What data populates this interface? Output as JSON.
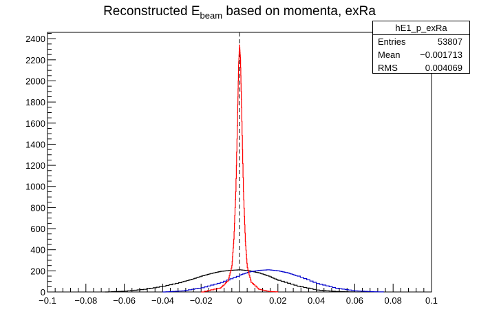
{
  "chart_data": {
    "type": "line",
    "title_main": "Reconstructed E",
    "title_sub": "beam",
    "title_rest": " based on momenta, exRa",
    "xlim": [
      -0.1,
      0.1
    ],
    "ylim": [
      0,
      2460
    ],
    "x_ticks": [
      "−0.1",
      "−0.08",
      "−0.06",
      "−0.04",
      "−0.02",
      "0",
      "0.02",
      "0.04",
      "0.06",
      "0.08",
      "0.1"
    ],
    "x_tick_values": [
      -0.1,
      -0.08,
      -0.06,
      -0.04,
      -0.02,
      0,
      0.02,
      0.04,
      0.06,
      0.08,
      0.1
    ],
    "y_ticks": [
      "0",
      "200",
      "400",
      "600",
      "800",
      "1000",
      "1200",
      "1400",
      "1600",
      "1800",
      "2000",
      "2200",
      "2400"
    ],
    "y_tick_values": [
      0,
      200,
      400,
      600,
      800,
      1000,
      1200,
      1400,
      1600,
      1800,
      2000,
      2200,
      2400
    ],
    "vertical_line_x": 0,
    "series": [
      {
        "color": "#000000",
        "x": [
          -0.07,
          -0.06,
          -0.05,
          -0.04,
          -0.03,
          -0.025,
          -0.02,
          -0.015,
          -0.01,
          -0.005,
          0,
          0.005,
          0.01,
          0.015,
          0.02,
          0.03,
          0.04,
          0.05,
          0.06
        ],
        "values": [
          0,
          8,
          25,
          55,
          95,
          120,
          150,
          175,
          195,
          205,
          210,
          200,
          180,
          150,
          110,
          55,
          18,
          4,
          0
        ]
      },
      {
        "color": "#0000cc",
        "x": [
          -0.04,
          -0.03,
          -0.02,
          -0.01,
          0,
          0.005,
          0.01,
          0.015,
          0.02,
          0.025,
          0.03,
          0.04,
          0.05,
          0.06,
          0.07,
          0.075
        ],
        "values": [
          0,
          10,
          40,
          90,
          160,
          190,
          205,
          210,
          200,
          180,
          150,
          80,
          35,
          10,
          2,
          0
        ]
      },
      {
        "color": "#ff0000",
        "x": [
          -0.02,
          -0.01,
          -0.006,
          -0.004,
          -0.003,
          -0.002,
          -0.001,
          -0.0005,
          0,
          0.0005,
          0.001,
          0.002,
          0.003,
          0.004,
          0.006,
          0.01,
          0.015,
          0.02
        ],
        "values": [
          0,
          40,
          110,
          250,
          500,
          950,
          1700,
          2150,
          2340,
          2200,
          1750,
          950,
          480,
          230,
          90,
          25,
          5,
          0
        ]
      }
    ]
  },
  "stats_box": {
    "name": "hE1_p_exRa",
    "entries_label": "Entries",
    "entries_value": "53807",
    "mean_label": "Mean",
    "mean_value": "−0.001713",
    "rms_label": "RMS",
    "rms_value": "0.004069"
  }
}
